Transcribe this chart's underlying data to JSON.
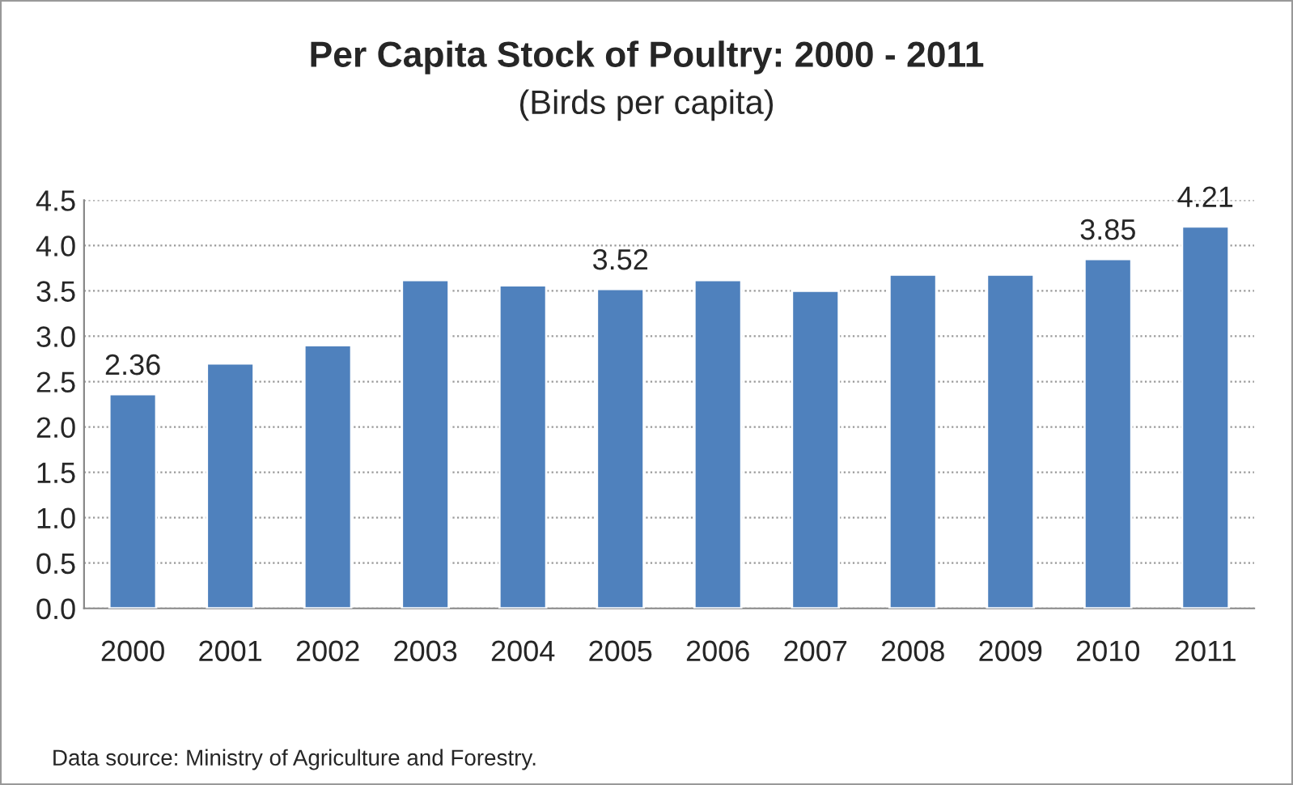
{
  "chart_data": {
    "type": "bar",
    "title": "Per Capita Stock of Poultry: 2000 - 2011",
    "subtitle": "(Birds per capita)",
    "categories": [
      "2000",
      "2001",
      "2002",
      "2003",
      "2004",
      "2005",
      "2006",
      "2007",
      "2008",
      "2009",
      "2010",
      "2011"
    ],
    "values": [
      2.36,
      2.7,
      2.9,
      3.62,
      3.56,
      3.52,
      3.62,
      3.5,
      3.68,
      3.68,
      3.85,
      4.21
    ],
    "value_labels": [
      "2.36",
      null,
      null,
      null,
      null,
      "3.52",
      null,
      null,
      null,
      null,
      "3.85",
      "4.21"
    ],
    "color": "#4f81bd",
    "ylim": [
      0,
      4.5
    ],
    "yticks": [
      "0.0",
      "0.5",
      "1.0",
      "1.5",
      "2.0",
      "2.5",
      "3.0",
      "3.5",
      "4.0",
      "4.5"
    ],
    "grid": "y",
    "legend": false,
    "annotations": [
      "Data source: Ministry of Agriculture and Forestry."
    ]
  }
}
